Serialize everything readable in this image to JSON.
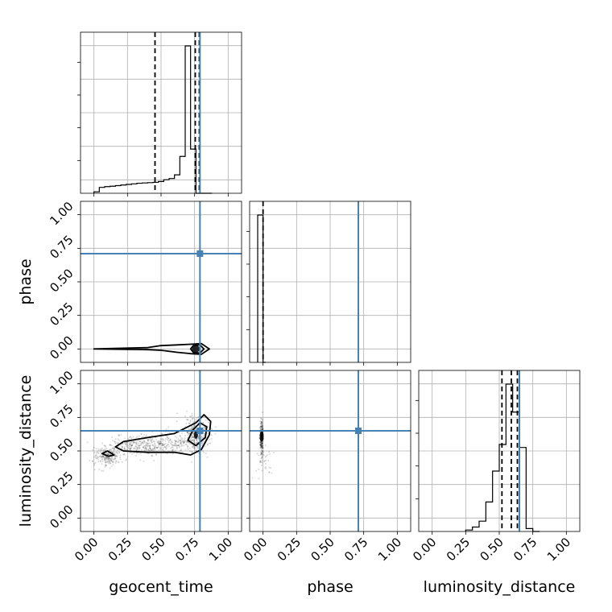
{
  "chart_data": {
    "type": "corner",
    "parameters": [
      "geocent_time",
      "phase",
      "luminosity_distance"
    ],
    "axis_labels": {
      "geocent_time": "geocent_time",
      "phase": "phase",
      "luminosity_distance": "luminosity_distance"
    },
    "xlim": [
      -0.1,
      1.1
    ],
    "ylim": [
      -0.1,
      1.1
    ],
    "ticks": [
      0.0,
      0.25,
      0.5,
      0.75,
      1.0
    ],
    "tick_labels": [
      "0.00",
      "0.25",
      "0.50",
      "0.75",
      "1.00"
    ],
    "grid": true,
    "truth_color": "#4682b4",
    "line_color": "#000000",
    "truths": {
      "geocent_time": 0.79,
      "phase": 0.71,
      "luminosity_distance": 0.65
    },
    "histograms": {
      "geocent_time": {
        "bin_edges": [
          0.0,
          0.04,
          0.08,
          0.12,
          0.16,
          0.2,
          0.24,
          0.28,
          0.32,
          0.36,
          0.4,
          0.44,
          0.48,
          0.52,
          0.56,
          0.6,
          0.64,
          0.68,
          0.72,
          0.76,
          0.8,
          0.84,
          0.88
        ],
        "counts": [
          0.01,
          0.04,
          0.045,
          0.048,
          0.052,
          0.056,
          0.06,
          0.064,
          0.068,
          0.07,
          0.072,
          0.074,
          0.08,
          0.092,
          0.1,
          0.125,
          0.25,
          1.0,
          0.3,
          0.0,
          0.0,
          0.0
        ],
        "quantiles": [
          0.455,
          0.755,
          0.785
        ]
      },
      "phase": {
        "bin_edges": [
          -0.04,
          -0.02,
          0.0,
          0.02
        ],
        "counts": [
          1.0,
          1.0,
          0.0
        ],
        "quantiles": [
          0.0
        ]
      },
      "luminosity_distance": {
        "bin_edges": [
          0.25,
          0.3,
          0.35,
          0.4,
          0.45,
          0.5,
          0.55,
          0.6,
          0.65,
          0.7,
          0.75,
          0.8
        ],
        "counts": [
          0.01,
          0.03,
          0.07,
          0.2,
          0.41,
          0.59,
          1.0,
          0.81,
          0.57,
          0.02,
          0.0
        ],
        "quantiles": [
          0.52,
          0.59,
          0.635
        ]
      }
    },
    "pairs": [
      {
        "x": "geocent_time",
        "y": "phase",
        "contours": [
          [
            [
              0.0,
              0.0
            ],
            [
              0.4,
              0.01
            ],
            [
              0.5,
              0.025
            ],
            [
              0.62,
              0.03
            ],
            [
              0.72,
              0.035
            ],
            [
              0.8,
              0.04
            ],
            [
              0.86,
              0.0
            ],
            [
              0.8,
              -0.04
            ],
            [
              0.72,
              -0.035
            ],
            [
              0.62,
              -0.025
            ],
            [
              0.5,
              -0.01
            ],
            [
              0.4,
              -0.005
            ],
            [
              0.0,
              0.0
            ]
          ],
          [
            [
              0.72,
              0.0
            ],
            [
              0.74,
              0.025
            ],
            [
              0.79,
              0.03
            ],
            [
              0.82,
              0.0
            ],
            [
              0.79,
              -0.03
            ],
            [
              0.74,
              -0.025
            ],
            [
              0.72,
              0.0
            ]
          ]
        ],
        "core": {
          "x": 0.76,
          "y": 0.0,
          "rx": 0.03,
          "ry": 0.025
        }
      },
      {
        "x": "geocent_time",
        "y": "luminosity_distance",
        "contours": [
          [
            [
              0.16,
              0.53
            ],
            [
              0.22,
              0.57
            ],
            [
              0.4,
              0.6
            ],
            [
              0.6,
              0.63
            ],
            [
              0.76,
              0.71
            ],
            [
              0.82,
              0.77
            ],
            [
              0.87,
              0.72
            ],
            [
              0.86,
              0.62
            ],
            [
              0.8,
              0.51
            ],
            [
              0.72,
              0.47
            ],
            [
              0.6,
              0.49
            ],
            [
              0.4,
              0.49
            ],
            [
              0.22,
              0.5
            ],
            [
              0.16,
              0.53
            ]
          ],
          [
            [
              0.7,
              0.58
            ],
            [
              0.74,
              0.66
            ],
            [
              0.79,
              0.71
            ],
            [
              0.84,
              0.68
            ],
            [
              0.83,
              0.6
            ],
            [
              0.76,
              0.54
            ],
            [
              0.7,
              0.58
            ]
          ],
          [
            [
              0.06,
              0.48
            ],
            [
              0.1,
              0.5
            ],
            [
              0.15,
              0.47
            ],
            [
              0.11,
              0.46
            ],
            [
              0.06,
              0.48
            ]
          ]
        ],
        "scatter_cloud": [
          {
            "x": 0.1,
            "y": 0.46,
            "sx": 0.05,
            "sy": 0.035,
            "n": 220
          },
          {
            "x": 0.3,
            "y": 0.54,
            "sx": 0.1,
            "sy": 0.035,
            "n": 260
          },
          {
            "x": 0.55,
            "y": 0.56,
            "sx": 0.1,
            "sy": 0.04,
            "n": 200
          },
          {
            "x": 0.76,
            "y": 0.62,
            "sx": 0.05,
            "sy": 0.07,
            "n": 320
          }
        ],
        "core": {
          "x": 0.76,
          "y": 0.62,
          "rx": 0.015,
          "ry": 0.03
        }
      },
      {
        "x": "phase",
        "y": "luminosity_distance",
        "contours": [],
        "scatter_cloud": [
          {
            "x": -0.01,
            "y": 0.6,
            "sx": 0.006,
            "sy": 0.06,
            "n": 260
          },
          {
            "x": 0.0,
            "y": 0.42,
            "sx": 0.03,
            "sy": 0.06,
            "n": 40
          }
        ],
        "core": {
          "x": -0.01,
          "y": 0.61,
          "rx": 0.015,
          "ry": 0.04
        }
      }
    ]
  }
}
